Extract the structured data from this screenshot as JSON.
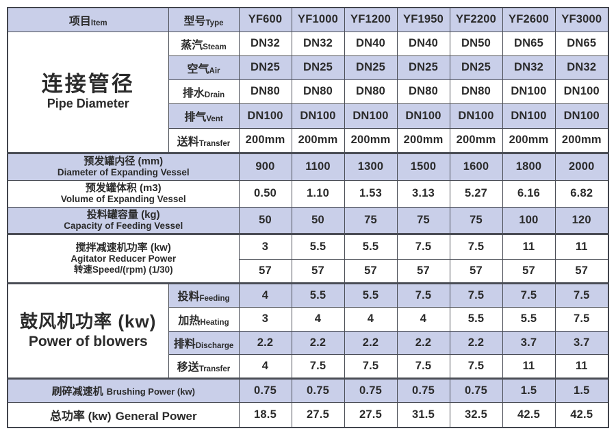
{
  "colors": {
    "row_fill": "#c9cfe9",
    "border": "#4a4d55",
    "text": "#2b2b2b",
    "background": "#ffffff"
  },
  "header": {
    "item_zh": "项目",
    "item_en": "Item",
    "type_zh": "型号",
    "type_en": "Type",
    "models": [
      "YF600",
      "YF1000",
      "YF1200",
      "YF1950",
      "YF2200",
      "YF2600",
      "YF3000"
    ]
  },
  "pipe": {
    "title_zh": "连接管径",
    "title_en": "Pipe Diameter",
    "rows": [
      {
        "zh": "蒸汽",
        "en": "Steam",
        "values": [
          "DN32",
          "DN32",
          "DN40",
          "DN40",
          "DN50",
          "DN65",
          "DN65"
        ]
      },
      {
        "zh": "空气",
        "en": "Air",
        "values": [
          "DN25",
          "DN25",
          "DN25",
          "DN25",
          "DN25",
          "DN32",
          "DN32"
        ]
      },
      {
        "zh": "排水",
        "en": "Drain",
        "values": [
          "DN80",
          "DN80",
          "DN80",
          "DN80",
          "DN80",
          "DN100",
          "DN100"
        ]
      },
      {
        "zh": "排气",
        "en": "Vent",
        "values": [
          "DN100",
          "DN100",
          "DN100",
          "DN100",
          "DN100",
          "DN100",
          "DN100"
        ]
      },
      {
        "zh": "送料",
        "en": "Transfer",
        "values": [
          "200mm",
          "200mm",
          "200mm",
          "200mm",
          "200mm",
          "200mm",
          "200mm"
        ]
      }
    ]
  },
  "specs": [
    {
      "zh": "预发罐内径 (mm)",
      "en": "Diameter of Expanding Vessel",
      "values": [
        "900",
        "1100",
        "1300",
        "1500",
        "1600",
        "1800",
        "2000"
      ]
    },
    {
      "zh": "预发罐体积 (m3)",
      "en": "Volume of Expanding Vessel",
      "values": [
        "0.50",
        "1.10",
        "1.53",
        "3.13",
        "5.27",
        "6.16",
        "6.82"
      ]
    },
    {
      "zh": "投料罐容量 (kg)",
      "en": "Capacity of Feeding Vessel",
      "values": [
        "50",
        "50",
        "75",
        "75",
        "75",
        "100",
        "120"
      ]
    }
  ],
  "agitator": {
    "line1": "搅拌减速机功率 (kw)",
    "line2": "Agitator Reducer Power",
    "line3": "转速Speed/(rpm) (1/30)",
    "power_values": [
      "3",
      "5.5",
      "5.5",
      "7.5",
      "7.5",
      "11",
      "11"
    ],
    "speed_values": [
      "57",
      "57",
      "57",
      "57",
      "57",
      "57",
      "57"
    ]
  },
  "blower": {
    "title_zh": "鼓风机功率 (kw)",
    "title_en": "Power of blowers",
    "rows": [
      {
        "zh": "投料",
        "en": "Feeding",
        "values": [
          "4",
          "5.5",
          "5.5",
          "7.5",
          "7.5",
          "7.5",
          "7.5"
        ]
      },
      {
        "zh": "加热",
        "en": "Heating",
        "values": [
          "3",
          "4",
          "4",
          "4",
          "5.5",
          "5.5",
          "7.5"
        ]
      },
      {
        "zh": "排料",
        "en": "Discharge",
        "values": [
          "2.2",
          "2.2",
          "2.2",
          "2.2",
          "2.2",
          "3.7",
          "3.7"
        ]
      },
      {
        "zh": "移送",
        "en": "Transfer",
        "values": [
          "4",
          "7.5",
          "7.5",
          "7.5",
          "7.5",
          "11",
          "11"
        ]
      }
    ]
  },
  "brushing": {
    "zh": "刷碎减速机",
    "en": "Brushing Power (kw)",
    "values": [
      "0.75",
      "0.75",
      "0.75",
      "0.75",
      "0.75",
      "1.5",
      "1.5"
    ]
  },
  "general": {
    "zh": "总功率 (kw)",
    "en": "General Power",
    "values": [
      "18.5",
      "27.5",
      "27.5",
      "31.5",
      "32.5",
      "42.5",
      "42.5"
    ]
  }
}
